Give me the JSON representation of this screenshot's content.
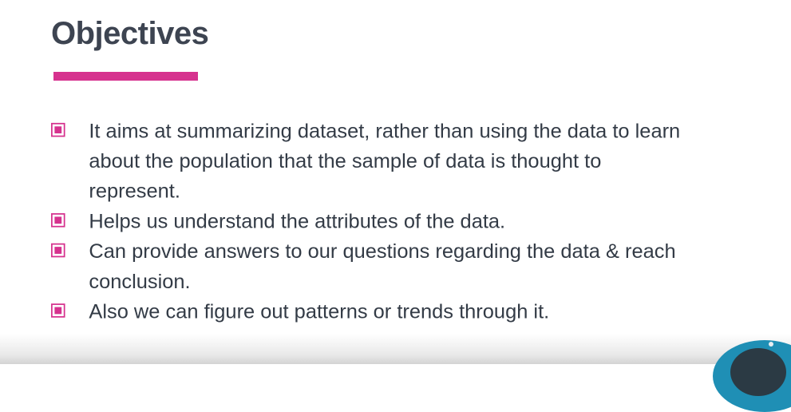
{
  "slide": {
    "title": "Objectives",
    "accent_color": "#d6328e",
    "title_color": "#3d4451",
    "bullets": [
      {
        "text": "It aims at summarizing dataset, rather than using the data to learn about the population that the sample of data is thought to represent."
      },
      {
        "text": "Helps us understand the attributes of the data."
      },
      {
        "text": "Can provide answers to our questions regarding the data & reach conclusion."
      },
      {
        "text": "Also we can figure out patterns or trends through it."
      }
    ]
  },
  "overlay": {
    "webcam_icon": "presenter-webcam-bubble"
  }
}
